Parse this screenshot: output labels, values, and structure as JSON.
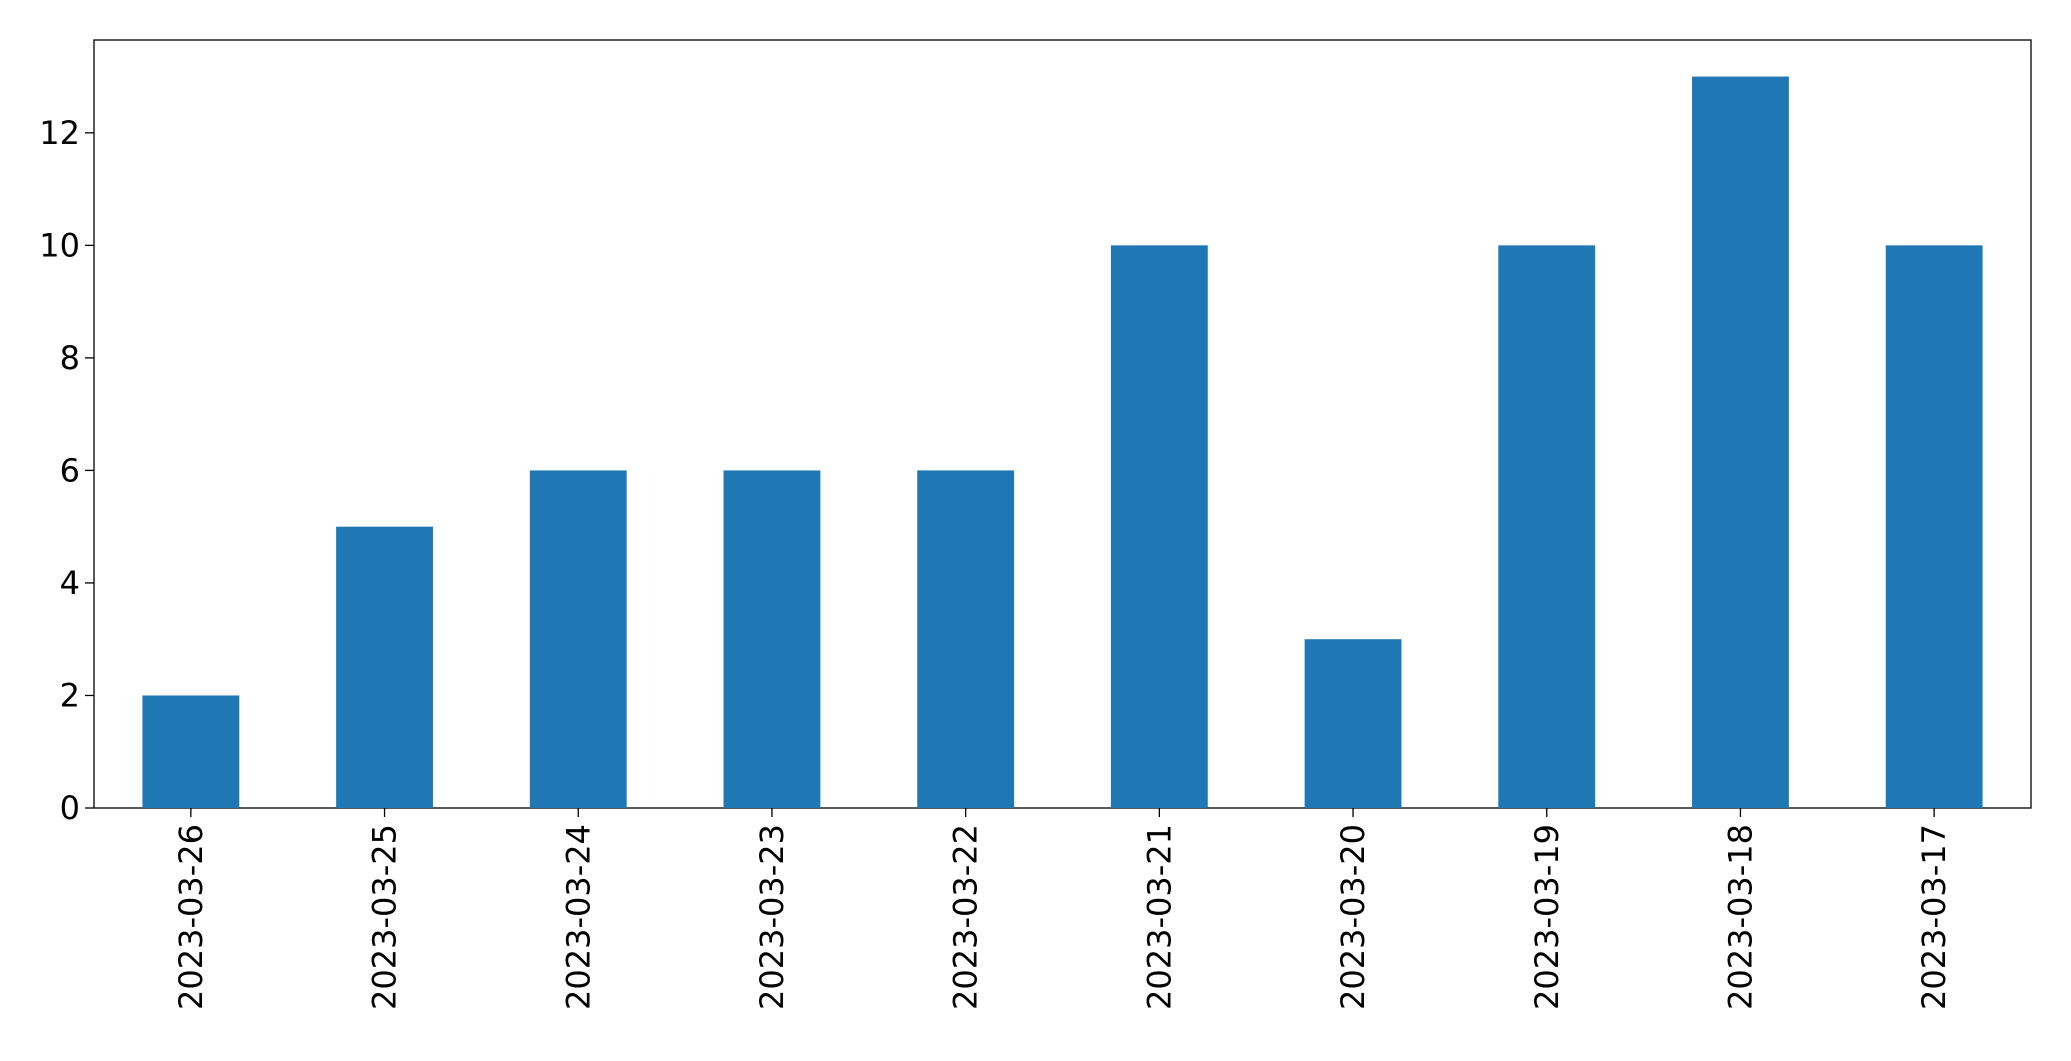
{
  "chart_data": {
    "type": "bar",
    "categories": [
      "2023-03-26",
      "2023-03-25",
      "2023-03-24",
      "2023-03-23",
      "2023-03-22",
      "2023-03-21",
      "2023-03-20",
      "2023-03-19",
      "2023-03-18",
      "2023-03-17"
    ],
    "values": [
      2,
      5,
      6,
      6,
      6,
      10,
      3,
      10,
      13,
      10
    ],
    "color": "#1f77b4",
    "ylim": [
      0,
      13.65
    ],
    "yticks": [
      0,
      2,
      4,
      6,
      8,
      10,
      12
    ],
    "grid": false
  }
}
